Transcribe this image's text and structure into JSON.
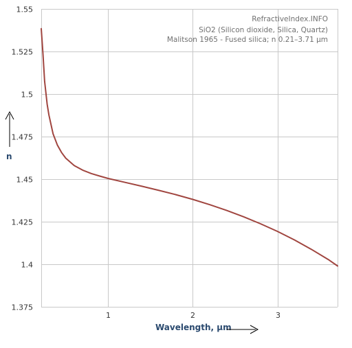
{
  "chart_data": {
    "type": "line",
    "xlabel": "Wavelength, µm",
    "ylabel": "n",
    "xlim": [
      0.21,
      3.71
    ],
    "ylim": [
      1.375,
      1.55
    ],
    "x_ticks": [
      "1",
      "2",
      "3"
    ],
    "y_ticks": [
      "1.375",
      "1.4",
      "1.425",
      "1.45",
      "1.475",
      "1.5",
      "1.525",
      "1.55"
    ],
    "grid": true,
    "annotations": [
      "RefractiveIndex.INFO",
      "SiO2 (Silicon dioxide, Silica, Quartz)",
      "Malitson 1965 - Fused silica; n 0.21–3.71 µm"
    ],
    "series": [
      {
        "color": "#a0453f",
        "x": [
          0.21,
          0.23,
          0.25,
          0.28,
          0.3,
          0.35,
          0.4,
          0.45,
          0.5,
          0.6,
          0.7,
          0.8,
          0.9,
          1.0,
          1.2,
          1.4,
          1.6,
          1.8,
          2.0,
          2.2,
          2.4,
          2.6,
          2.8,
          3.0,
          3.2,
          3.4,
          3.6,
          3.71
        ],
        "values": [
          1.5384,
          1.5236,
          1.5075,
          1.494,
          1.4878,
          1.4766,
          1.4701,
          1.4656,
          1.4623,
          1.458,
          1.4553,
          1.4533,
          1.4518,
          1.4504,
          1.4481,
          1.4458,
          1.4434,
          1.4409,
          1.4381,
          1.435,
          1.4316,
          1.4279,
          1.4238,
          1.4193,
          1.4143,
          1.4088,
          1.4028,
          1.399
        ]
      }
    ]
  }
}
